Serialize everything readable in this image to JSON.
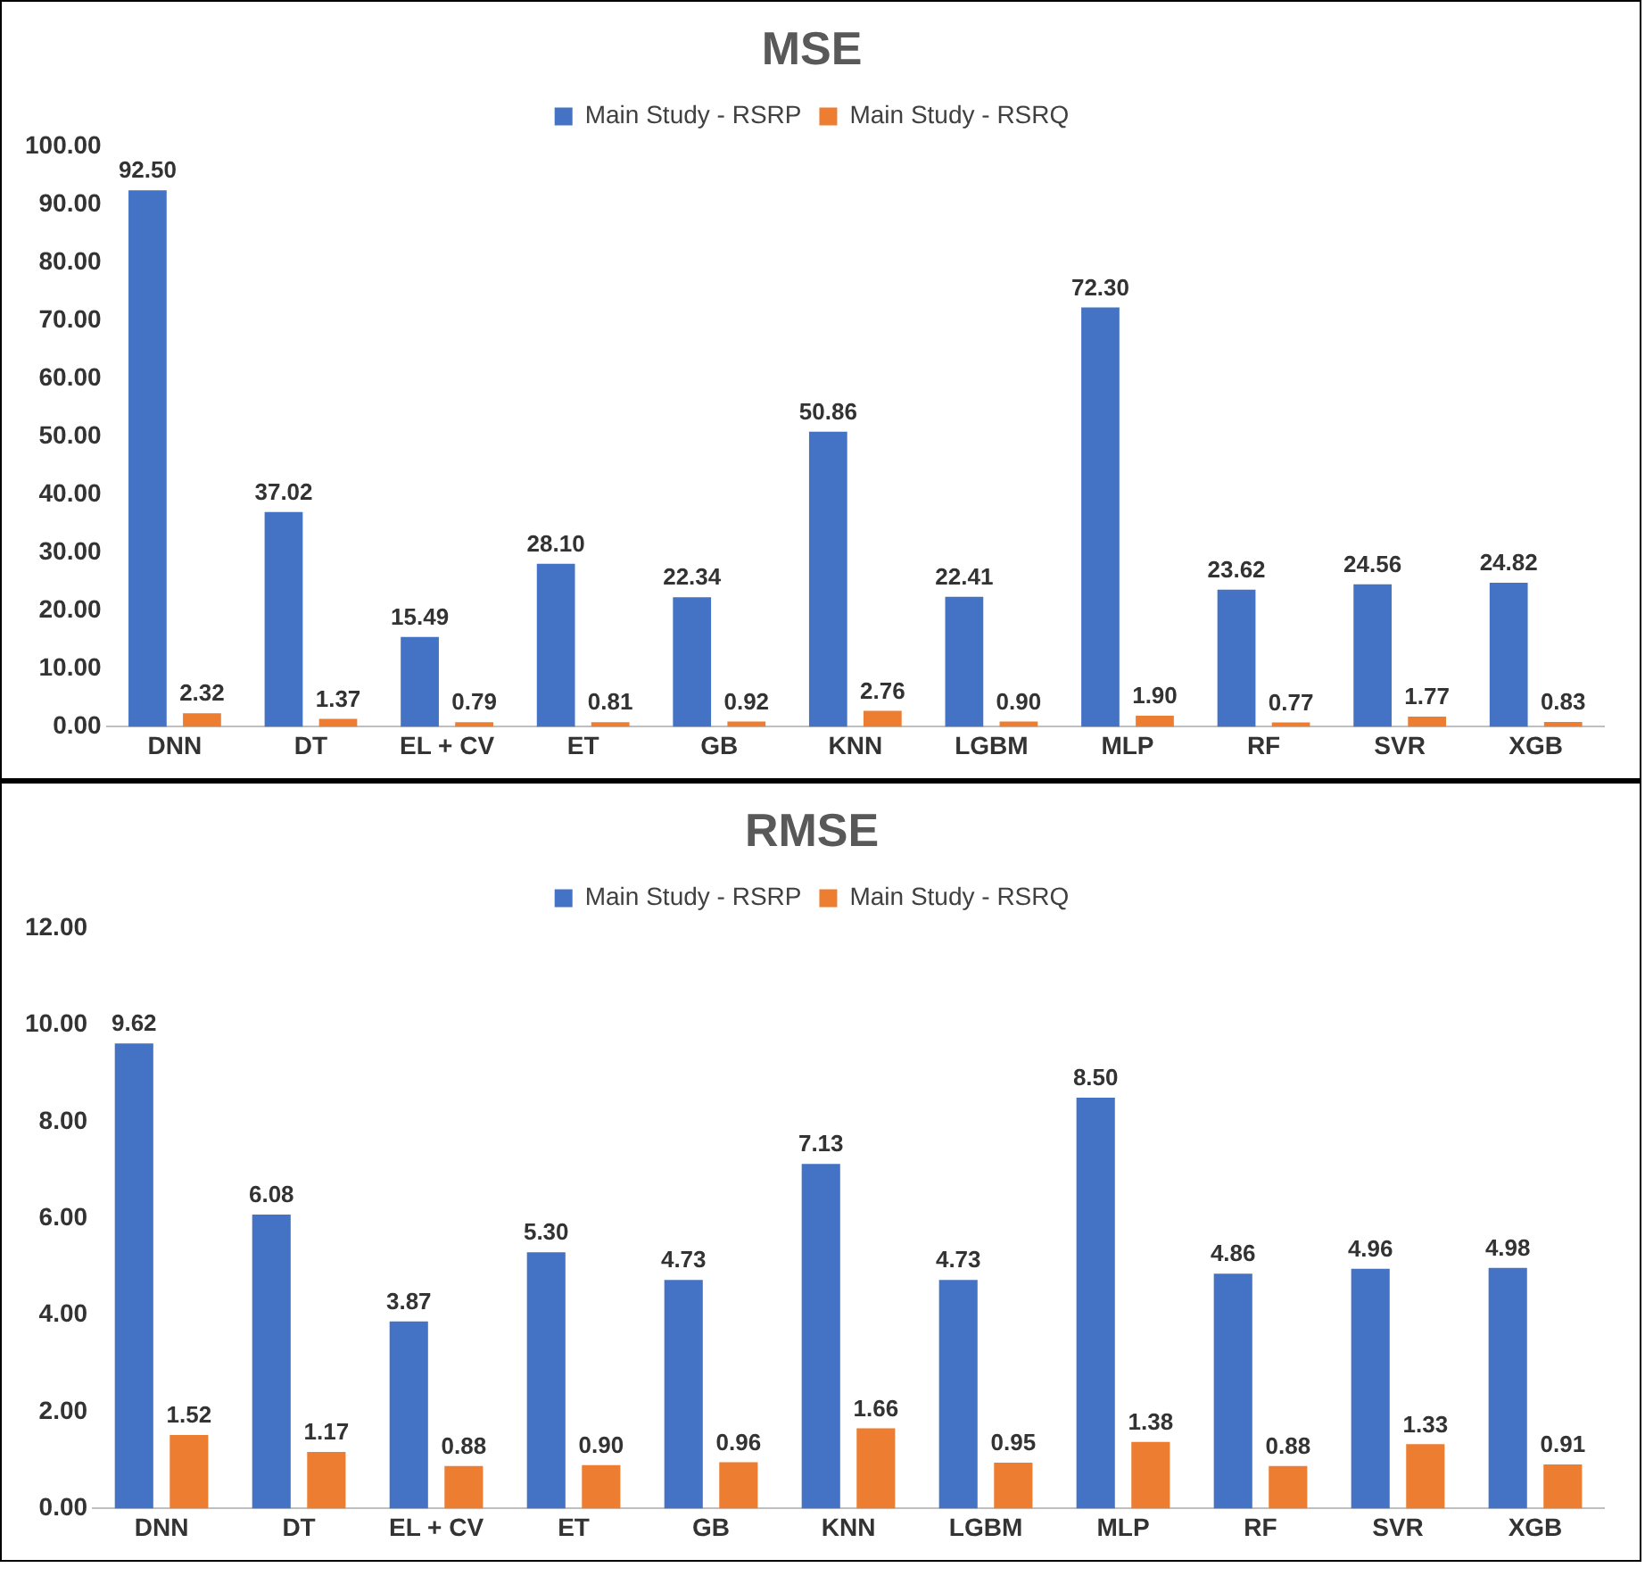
{
  "chart_data": [
    {
      "type": "bar",
      "title": "MSE",
      "categories": [
        "DNN",
        "DT",
        "EL + CV",
        "ET",
        "GB",
        "KNN",
        "LGBM",
        "MLP",
        "RF",
        "SVR",
        "XGB"
      ],
      "series": [
        {
          "name": "Main Study - RSRP",
          "color": "#4472c4",
          "values": [
            92.5,
            37.02,
            15.49,
            28.1,
            22.34,
            50.86,
            22.41,
            72.3,
            23.62,
            24.56,
            24.82
          ],
          "value_labels": [
            "92.50",
            "37.02",
            "15.49",
            "28.10",
            "22.34",
            "50.86",
            "22.41",
            "72.30",
            "23.62",
            "24.56",
            "24.82"
          ]
        },
        {
          "name": "Main Study - RSRQ",
          "color": "#ed7d31",
          "values": [
            2.32,
            1.37,
            0.79,
            0.81,
            0.92,
            2.76,
            0.9,
            1.9,
            0.77,
            1.77,
            0.83
          ],
          "value_labels": [
            "2.32",
            "1.37",
            "0.79",
            "0.81",
            "0.92",
            "2.76",
            "0.90",
            "1.90",
            "0.77",
            "1.77",
            "0.83"
          ]
        }
      ],
      "ylim": [
        0,
        100
      ],
      "yticks": [
        {
          "value": 0,
          "label": "0.00"
        },
        {
          "value": 10,
          "label": "10.00"
        },
        {
          "value": 20,
          "label": "20.00"
        },
        {
          "value": 30,
          "label": "30.00"
        },
        {
          "value": 40,
          "label": "40.00"
        },
        {
          "value": 50,
          "label": "50.00"
        },
        {
          "value": 60,
          "label": "60.00"
        },
        {
          "value": 70,
          "label": "70.00"
        },
        {
          "value": 80,
          "label": "80.00"
        },
        {
          "value": 90,
          "label": "90.00"
        },
        {
          "value": 100,
          "label": "100.00"
        }
      ],
      "grid": false,
      "legend": "top"
    },
    {
      "type": "bar",
      "title": "RMSE",
      "categories": [
        "DNN",
        "DT",
        "EL + CV",
        "ET",
        "GB",
        "KNN",
        "LGBM",
        "MLP",
        "RF",
        "SVR",
        "XGB"
      ],
      "series": [
        {
          "name": "Main Study - RSRP",
          "color": "#4472c4",
          "values": [
            9.62,
            6.08,
            3.87,
            5.3,
            4.73,
            7.13,
            4.73,
            8.5,
            4.86,
            4.96,
            4.98
          ],
          "value_labels": [
            "9.62",
            "6.08",
            "3.87",
            "5.30",
            "4.73",
            "7.13",
            "4.73",
            "8.50",
            "4.86",
            "4.96",
            "4.98"
          ]
        },
        {
          "name": "Main Study - RSRQ",
          "color": "#ed7d31",
          "values": [
            1.52,
            1.17,
            0.88,
            0.9,
            0.96,
            1.66,
            0.95,
            1.38,
            0.88,
            1.33,
            0.91
          ],
          "value_labels": [
            "1.52",
            "1.17",
            "0.88",
            "0.90",
            "0.96",
            "1.66",
            "0.95",
            "1.38",
            "0.88",
            "1.33",
            "0.91"
          ]
        }
      ],
      "ylim": [
        0,
        12
      ],
      "yticks": [
        {
          "value": 0,
          "label": "0.00"
        },
        {
          "value": 2,
          "label": "2.00"
        },
        {
          "value": 4,
          "label": "4.00"
        },
        {
          "value": 6,
          "label": "6.00"
        },
        {
          "value": 8,
          "label": "8.00"
        },
        {
          "value": 10,
          "label": "10.00"
        },
        {
          "value": 12,
          "label": "12.00"
        }
      ],
      "grid": false,
      "legend": "top"
    }
  ]
}
